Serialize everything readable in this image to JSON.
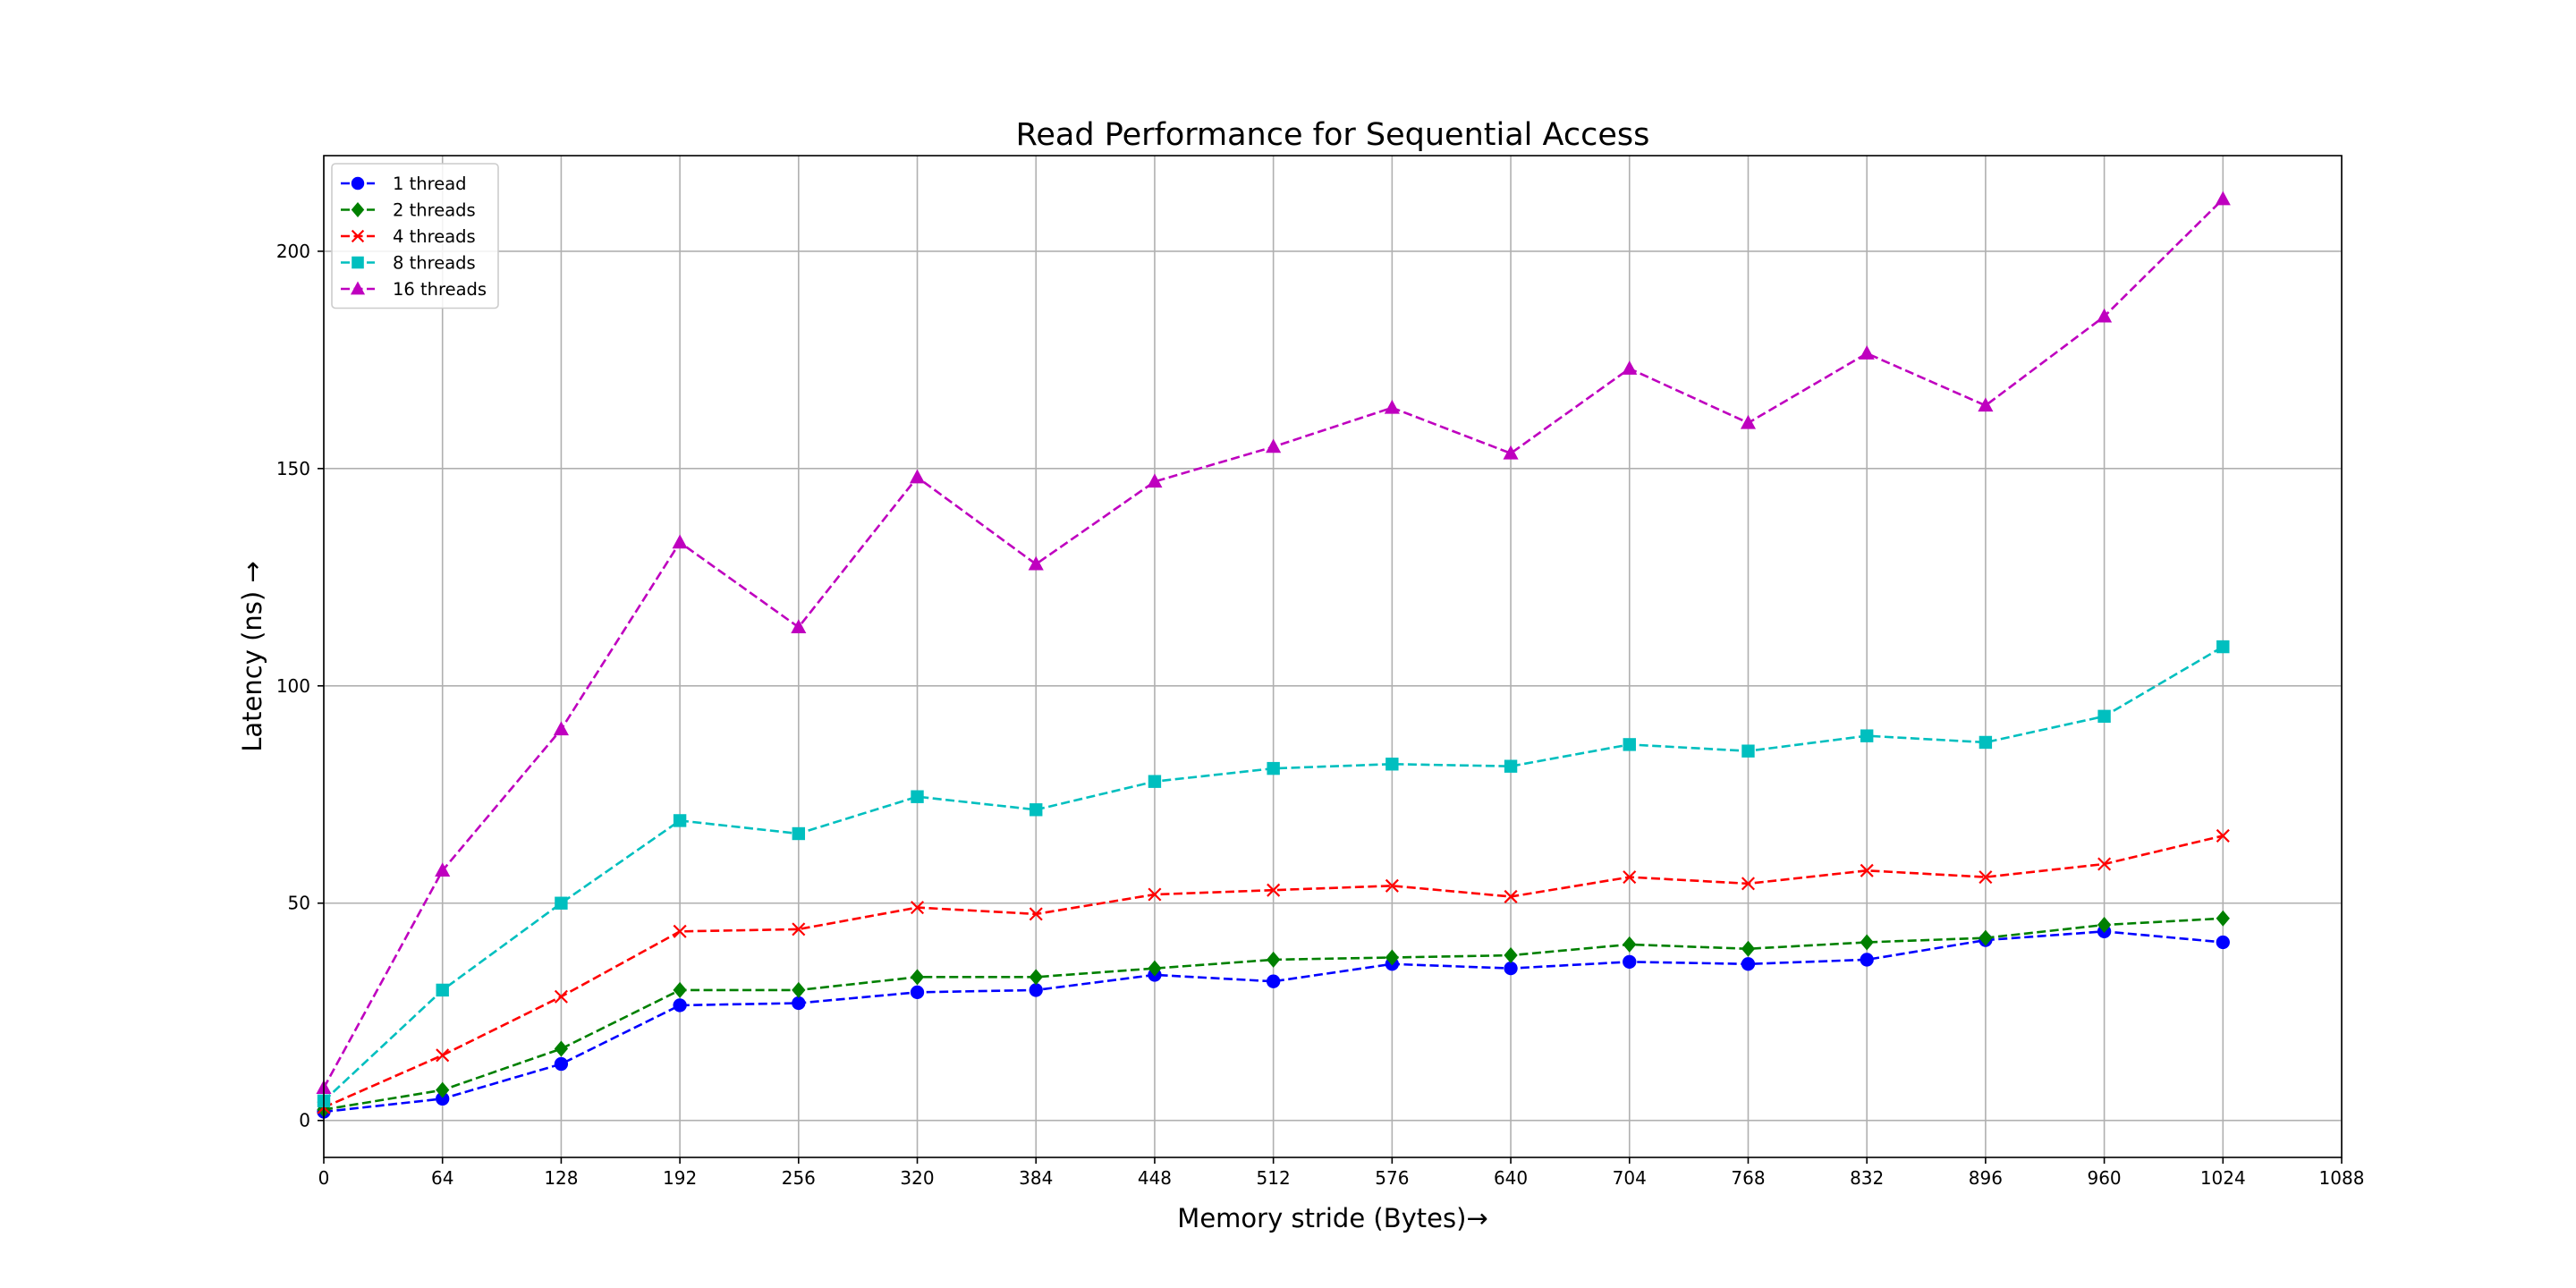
{
  "chart_data": {
    "type": "line",
    "title": "Read Performance for Sequential Access",
    "xlabel": "Memory stride (Bytes)→",
    "ylabel": "Latency (ns)  →",
    "x": [
      0,
      64,
      128,
      192,
      256,
      320,
      384,
      448,
      512,
      576,
      640,
      704,
      768,
      832,
      896,
      960,
      1024
    ],
    "xticks": [
      0,
      64,
      128,
      192,
      256,
      320,
      384,
      448,
      512,
      576,
      640,
      704,
      768,
      832,
      896,
      960,
      1024,
      1088
    ],
    "yticks": [
      0,
      50,
      100,
      150,
      200
    ],
    "xlim": [
      0,
      1088
    ],
    "ylim": [
      -8.5,
      222
    ],
    "grid": true,
    "line_style": "dashed",
    "legend_position": "upper-left",
    "series": [
      {
        "name": "1 thread",
        "color": "#0000ff",
        "marker": "circle",
        "values": [
          2,
          5,
          13,
          26.5,
          27,
          29.5,
          30,
          33.5,
          32,
          36,
          35,
          36.5,
          36,
          37,
          41.5,
          43.5,
          41
        ]
      },
      {
        "name": "2 threads",
        "color": "#008000",
        "marker": "diamond",
        "values": [
          2.5,
          7,
          16.5,
          30,
          30,
          33,
          33,
          35,
          37,
          37.5,
          38,
          40.5,
          39.5,
          41,
          42,
          45,
          46.5
        ]
      },
      {
        "name": "4 threads",
        "color": "#ff0000",
        "marker": "x",
        "values": [
          3,
          15,
          28.5,
          43.5,
          44,
          49,
          47.5,
          52,
          53,
          54,
          51.5,
          56,
          54.5,
          57.5,
          56,
          59,
          65.5
        ]
      },
      {
        "name": "8 threads",
        "color": "#00bfbf",
        "marker": "square",
        "values": [
          4.5,
          30,
          50,
          69,
          66,
          74.5,
          71.5,
          78,
          81,
          82,
          81.5,
          86.5,
          85,
          88.5,
          87,
          93,
          109
        ]
      },
      {
        "name": "16 threads",
        "color": "#bf00bf",
        "marker": "triangle",
        "values": [
          7.5,
          57.5,
          90,
          133,
          113.5,
          148,
          128,
          147,
          155,
          164,
          153.5,
          173,
          160.5,
          176.5,
          164.5,
          185,
          212
        ]
      }
    ]
  }
}
